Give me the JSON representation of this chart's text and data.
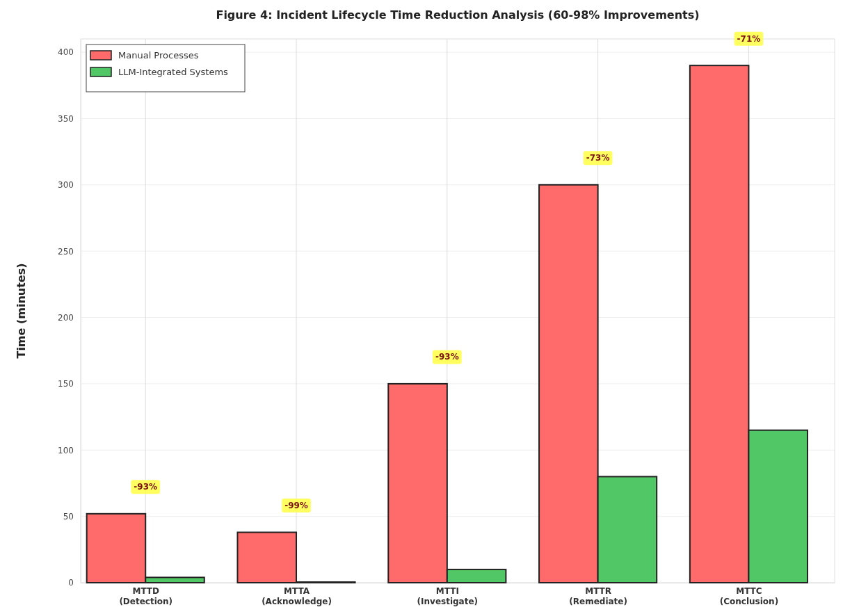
{
  "chart_data": {
    "type": "bar",
    "title": "Figure 4: Incident Lifecycle Time Reduction Analysis (60-98% Improvements)",
    "ylabel": "Time (minutes)",
    "categories": [
      "MTTD\n(Detection)",
      "MTTA\n(Acknowledge)",
      "MTTI\n(Investigate)",
      "MTTR\n(Remediate)",
      "MTTC\n(Conclusion)"
    ],
    "series": [
      {
        "name": "Manual Processes",
        "color": "#ff6b6b",
        "values": [
          52,
          38,
          150,
          300,
          390
        ]
      },
      {
        "name": "LLM-Integrated Systems",
        "color": "#51c765",
        "values": [
          4,
          0.5,
          10,
          80,
          115
        ]
      }
    ],
    "ylim": [
      0,
      410
    ],
    "yticks": [
      0,
      50,
      100,
      150,
      200,
      250,
      300,
      350,
      400
    ],
    "grid": true,
    "legend": "top left",
    "annotations": [
      {
        "text": "-93%",
        "x": "MTTD\n(Detection)",
        "y": 52
      },
      {
        "text": "-99%",
        "x": "MTTA\n(Acknowledge)",
        "y": 38
      },
      {
        "text": "-93%",
        "x": "MTTI\n(Investigate)",
        "y": 150
      },
      {
        "text": "-73%",
        "x": "MTTR\n(Remediate)",
        "y": 300
      },
      {
        "text": "-71%",
        "x": "MTTC\n(Conclusion)",
        "y": 390
      }
    ]
  }
}
